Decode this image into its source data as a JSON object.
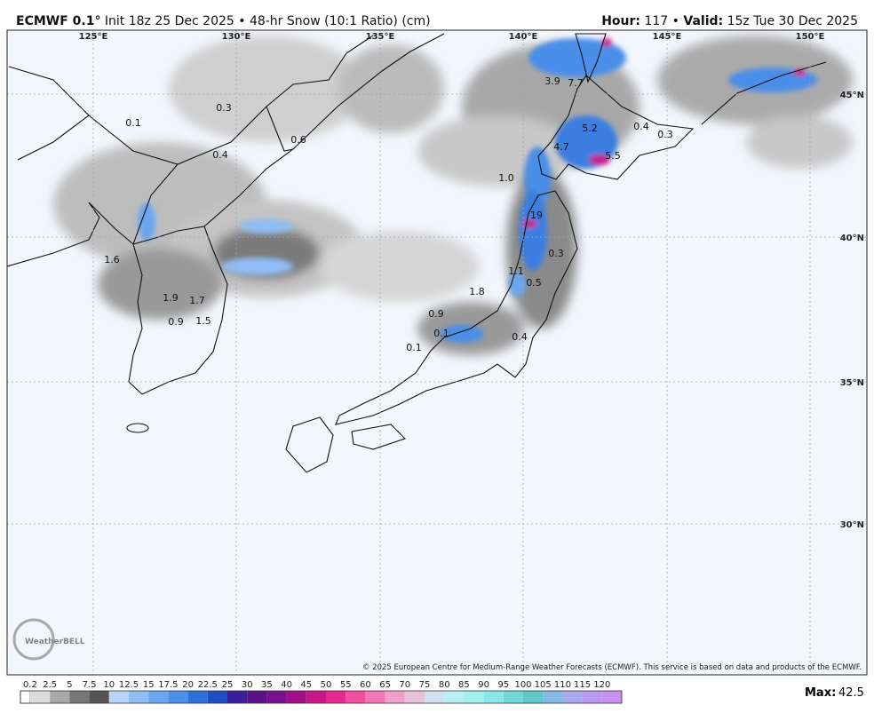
{
  "header": {
    "model": "ECMWF 0.1°",
    "description": "Init 18z 25 Dec 2025 • 48-hr Snow (10:1 Ratio) (cm)",
    "hour_label": "Hour:",
    "hour": "117",
    "separator": "•",
    "valid_label": "Valid:",
    "valid": "15z Tue 30 Dec 2025"
  },
  "map": {
    "longitude_labels": [
      "125°E",
      "130°E",
      "135°E",
      "140°E",
      "145°E",
      "150°E"
    ],
    "latitude_labels": [
      "45°N",
      "40°N",
      "35°N",
      "30°N"
    ],
    "point_labels": [
      "0.1",
      "0.3",
      "0.4",
      "0.6",
      "1.6",
      "1.9",
      "1.7",
      "0.9",
      "1.5",
      "3.9",
      "7.7",
      "5.2",
      "0.4",
      "0.3",
      "4.7",
      "5.5",
      "1.0",
      "19",
      "0.3",
      "1.1",
      "0.5",
      "1.8",
      "0.9",
      "0.1",
      "0.4",
      "0.1"
    ],
    "watermark": "WeatherBELL",
    "copyright": "© 2025 European Centre for Medium-Range Weather Forecasts (ECMWF). This service is based on data and products of the ECMWF."
  },
  "legend": {
    "values": [
      0.2,
      2.5,
      5,
      7.5,
      10,
      12.5,
      15,
      17.5,
      20,
      22.5,
      25,
      30,
      35,
      40,
      45,
      50,
      55,
      60,
      65,
      70,
      75,
      80,
      85,
      90,
      95,
      100,
      105,
      110,
      115,
      120
    ],
    "colors": [
      "#dcdcdc",
      "#a8a8a8",
      "#767676",
      "#555555",
      "#b8d4f8",
      "#90bdf5",
      "#6aa6f0",
      "#4a8ee8",
      "#2f6fd8",
      "#1f4fc0",
      "#3a1f9a",
      "#5a1488",
      "#7a1090",
      "#a0108a",
      "#c81888",
      "#e82a90",
      "#f050a0",
      "#f078b4",
      "#f0a0c8",
      "#e8c0d8",
      "#d0e0f0",
      "#b8eef4",
      "#a0f0f0",
      "#88e8e8",
      "#70d8d8",
      "#60c8c8",
      "#88b8e4",
      "#a8a8ec",
      "#b898f0",
      "#c890f0"
    ],
    "max_label": "Max:",
    "max": "42.5"
  }
}
